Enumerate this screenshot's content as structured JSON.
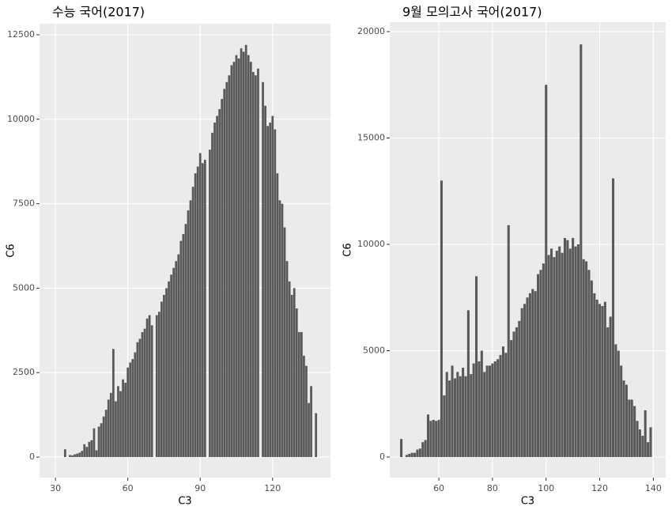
{
  "chart_data": [
    {
      "type": "bar",
      "title": "수능 국어(2017)",
      "x_label": "C3",
      "y_label": "C6",
      "color": "#595959",
      "grid": true,
      "x": [
        34,
        36,
        37,
        38,
        39,
        40,
        41,
        42,
        43,
        44,
        45,
        46,
        47,
        48,
        49,
        50,
        51,
        52,
        53,
        54,
        55,
        56,
        57,
        58,
        59,
        60,
        61,
        62,
        63,
        64,
        65,
        66,
        67,
        68,
        69,
        70,
        72,
        73,
        74,
        75,
        76,
        77,
        78,
        79,
        80,
        81,
        82,
        83,
        84,
        85,
        86,
        87,
        88,
        89,
        90,
        91,
        92,
        94,
        95,
        96,
        97,
        98,
        99,
        100,
        101,
        102,
        103,
        104,
        105,
        106,
        107,
        108,
        109,
        110,
        111,
        112,
        113,
        114,
        116,
        117,
        118,
        119,
        120,
        121,
        122,
        123,
        124,
        125,
        126,
        127,
        128,
        129,
        130,
        131,
        132,
        133,
        134,
        135,
        136,
        138
      ],
      "values": [
        230,
        60,
        50,
        80,
        100,
        130,
        180,
        380,
        300,
        450,
        500,
        850,
        200,
        900,
        1000,
        1200,
        1400,
        1700,
        1900,
        3200,
        1650,
        2100,
        1950,
        2300,
        2200,
        2650,
        2800,
        2900,
        3100,
        3400,
        3500,
        3700,
        3800,
        4100,
        4200,
        3900,
        4200,
        4300,
        4600,
        4800,
        5000,
        5200,
        5400,
        5600,
        5800,
        6000,
        6400,
        6600,
        6900,
        7300,
        7600,
        8000,
        8400,
        8600,
        9000,
        8700,
        8800,
        9100,
        9600,
        9900,
        10100,
        10300,
        10600,
        10900,
        11100,
        11300,
        11600,
        11700,
        11900,
        11800,
        12100,
        12000,
        12200,
        11900,
        11700,
        11400,
        11300,
        11500,
        11100,
        10400,
        9800,
        9900,
        10100,
        9700,
        8400,
        7600,
        7500,
        6800,
        5800,
        5200,
        4800,
        5000,
        4400,
        3700,
        3700,
        3000,
        2700,
        1600,
        2100,
        1300
      ],
      "xlim": [
        23.4,
        144
      ],
      "ylim": [
        -609,
        12828
      ],
      "xticks": [
        30,
        60,
        90,
        120
      ],
      "yticks": [
        0,
        2500,
        5000,
        7500,
        10000,
        12500
      ]
    },
    {
      "type": "bar",
      "title": "9월 모의고사 국어(2017)",
      "x_label": "C3",
      "y_label": "C6",
      "color": "#595959",
      "grid": true,
      "x": [
        46,
        48,
        49,
        50,
        51,
        52,
        53,
        54,
        55,
        56,
        57,
        58,
        59,
        60,
        61,
        62,
        63,
        64,
        65,
        66,
        67,
        68,
        69,
        70,
        71,
        72,
        73,
        74,
        75,
        76,
        77,
        78,
        79,
        80,
        81,
        82,
        83,
        84,
        85,
        86,
        87,
        88,
        89,
        90,
        91,
        92,
        93,
        94,
        95,
        96,
        97,
        98,
        99,
        100,
        101,
        102,
        103,
        104,
        105,
        106,
        107,
        108,
        109,
        110,
        111,
        112,
        113,
        114,
        115,
        116,
        117,
        118,
        119,
        120,
        121,
        122,
        123,
        124,
        125,
        126,
        127,
        128,
        129,
        130,
        131,
        132,
        133,
        134,
        135,
        136,
        137,
        138,
        139
      ],
      "values": [
        850,
        100,
        150,
        200,
        200,
        350,
        400,
        700,
        800,
        2000,
        1700,
        1750,
        1700,
        1750,
        13000,
        2900,
        4000,
        3600,
        4300,
        3700,
        4000,
        3800,
        4200,
        3800,
        6900,
        3900,
        4400,
        8500,
        4500,
        5000,
        4000,
        4300,
        4300,
        4400,
        4500,
        4600,
        4800,
        5200,
        4900,
        10900,
        5500,
        5900,
        6100,
        6400,
        7000,
        7200,
        7500,
        7700,
        7900,
        7800,
        8600,
        8800,
        9100,
        17500,
        9500,
        9800,
        9400,
        9700,
        9900,
        9600,
        10300,
        10200,
        9800,
        10300,
        9900,
        10000,
        19400,
        9300,
        9200,
        8800,
        8300,
        7700,
        7400,
        7200,
        7100,
        7300,
        6100,
        6600,
        13100,
        5300,
        5000,
        4300,
        3600,
        3400,
        2700,
        2700,
        2400,
        1700,
        1300,
        1000,
        2200,
        700,
        1400
      ],
      "xlim": [
        41.7,
        144.6
      ],
      "ylim": [
        -967,
        20446
      ],
      "xticks": [
        60,
        80,
        100,
        120,
        140
      ],
      "yticks": [
        0,
        5000,
        10000,
        15000,
        20000
      ]
    }
  ]
}
